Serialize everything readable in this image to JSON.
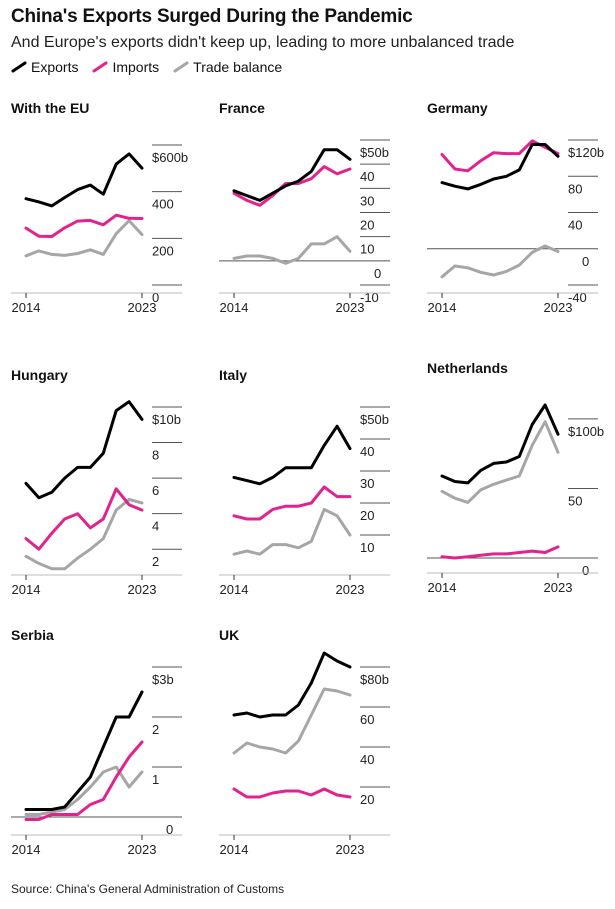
{
  "title": "China's Exports Surged During the Pandemic",
  "subtitle": "And Europe's exports didn't keep up, leading to more unbalanced trade",
  "legend": {
    "exports": "Exports",
    "imports": "Imports",
    "trade_balance": "Trade balance"
  },
  "colors": {
    "exports": "#000000",
    "imports": "#e0238f",
    "trade_balance": "#a6a6a6",
    "axis": "#555555"
  },
  "source": "Source: China's General Administration of Customs",
  "chart_data": [
    {
      "type": "line",
      "title": "With the EU",
      "x": [
        2014,
        2015,
        2016,
        2017,
        2018,
        2019,
        2020,
        2021,
        2022,
        2023
      ],
      "x_tick_labels": [
        "2014",
        "2023"
      ],
      "ylim": [
        0,
        600
      ],
      "y_ticks": [
        {
          "value": 600,
          "label": "$600b"
        },
        {
          "value": 400,
          "label": "400"
        },
        {
          "value": 200,
          "label": "200"
        },
        {
          "value": 0,
          "label": "0"
        }
      ],
      "y_axis_side": "right",
      "series": [
        {
          "name": "Exports",
          "values": [
            370,
            356,
            339,
            375,
            409,
            428,
            389,
            518,
            562,
            501
          ]
        },
        {
          "name": "Imports",
          "values": [
            244,
            209,
            208,
            245,
            274,
            277,
            258,
            299,
            286,
            285
          ]
        },
        {
          "name": "Trade balance",
          "values": [
            125,
            146,
            131,
            127,
            135,
            151,
            131,
            220,
            276,
            216
          ]
        }
      ]
    },
    {
      "type": "line",
      "title": "France",
      "x": [
        2014,
        2015,
        2016,
        2017,
        2018,
        2019,
        2020,
        2021,
        2022,
        2023
      ],
      "x_tick_labels": [
        "2014",
        "2023"
      ],
      "ylim": [
        -10,
        50
      ],
      "y_ticks": [
        {
          "value": 50,
          "label": "$50b"
        },
        {
          "value": 40,
          "label": "40"
        },
        {
          "value": 30,
          "label": "30"
        },
        {
          "value": 20,
          "label": "20"
        },
        {
          "value": 10,
          "label": "10"
        },
        {
          "value": 0,
          "label": "0"
        },
        {
          "value": -10,
          "label": "-10"
        }
      ],
      "y_axis_side": "right",
      "series": [
        {
          "name": "Exports",
          "values": [
            29,
            27,
            25,
            28,
            31,
            33,
            37,
            46,
            46,
            42
          ]
        },
        {
          "name": "Imports",
          "values": [
            28,
            25,
            23,
            27,
            32,
            32,
            34,
            39,
            36,
            38
          ]
        },
        {
          "name": "Trade balance",
          "values": [
            1,
            2,
            2,
            1,
            -1,
            1,
            7,
            7,
            10,
            4
          ]
        }
      ]
    },
    {
      "type": "line",
      "title": "Germany",
      "x": [
        2014,
        2015,
        2016,
        2017,
        2018,
        2019,
        2020,
        2021,
        2022,
        2023
      ],
      "x_tick_labels": [
        "2014",
        "2023"
      ],
      "ylim": [
        -40,
        120
      ],
      "y_ticks": [
        {
          "value": 120,
          "label": "$120b"
        },
        {
          "value": 80,
          "label": "80"
        },
        {
          "value": 40,
          "label": "40"
        },
        {
          "value": 0,
          "label": "0"
        },
        {
          "value": -40,
          "label": "-40"
        }
      ],
      "y_axis_side": "right",
      "series": [
        {
          "name": "Exports",
          "values": [
            73,
            69,
            66,
            71,
            77,
            80,
            87,
            115,
            115,
            102
          ]
        },
        {
          "name": "Imports",
          "values": [
            104,
            88,
            86,
            97,
            106,
            105,
            105,
            119,
            112,
            105
          ]
        },
        {
          "name": "Trade balance",
          "values": [
            -31,
            -19,
            -21,
            -26,
            -29,
            -25,
            -18,
            -4,
            3,
            -3
          ]
        }
      ]
    },
    {
      "type": "line",
      "title": "Hungary",
      "x": [
        2014,
        2015,
        2016,
        2017,
        2018,
        2019,
        2020,
        2021,
        2022,
        2023
      ],
      "x_tick_labels": [
        "2014",
        "2023"
      ],
      "ylim": [
        1,
        10
      ],
      "y_ticks": [
        {
          "value": 10,
          "label": "$10b"
        },
        {
          "value": 8,
          "label": "8"
        },
        {
          "value": 6,
          "label": "6"
        },
        {
          "value": 4,
          "label": "4"
        },
        {
          "value": 2,
          "label": "2"
        }
      ],
      "y_axis_side": "right",
      "series": [
        {
          "name": "Exports",
          "values": [
            5.7,
            4.9,
            5.2,
            6.0,
            6.6,
            6.6,
            7.4,
            9.8,
            10.3,
            9.3
          ]
        },
        {
          "name": "Imports",
          "values": [
            2.6,
            2.0,
            2.9,
            3.7,
            4.0,
            3.2,
            3.7,
            5.4,
            4.5,
            4.2
          ]
        },
        {
          "name": "Trade balance",
          "values": [
            1.6,
            1.2,
            0.9,
            0.9,
            1.5,
            2.0,
            2.6,
            4.2,
            4.8,
            4.6
          ]
        }
      ]
    },
    {
      "type": "line",
      "title": "Italy",
      "x": [
        2014,
        2015,
        2016,
        2017,
        2018,
        2019,
        2020,
        2021,
        2022,
        2023
      ],
      "x_tick_labels": [
        "2014",
        "2023"
      ],
      "ylim": [
        0,
        50
      ],
      "y_ticks": [
        {
          "value": 50,
          "label": "$50b"
        },
        {
          "value": 40,
          "label": "40"
        },
        {
          "value": 30,
          "label": "30"
        },
        {
          "value": 20,
          "label": "20"
        },
        {
          "value": 10,
          "label": "10"
        }
      ],
      "y_axis_side": "right",
      "series": [
        {
          "name": "Exports",
          "values": [
            28,
            27,
            26,
            28,
            31,
            31,
            31,
            38,
            44,
            37
          ]
        },
        {
          "name": "Imports",
          "values": [
            16,
            15,
            15,
            18,
            19,
            19,
            20,
            25,
            22,
            22
          ]
        },
        {
          "name": "Trade balance",
          "values": [
            4,
            5,
            4,
            7,
            7,
            6,
            8,
            18,
            16,
            10
          ]
        }
      ]
    },
    {
      "type": "line",
      "title": "Netherlands",
      "x": [
        2014,
        2015,
        2016,
        2017,
        2018,
        2019,
        2020,
        2021,
        2022,
        2023
      ],
      "x_tick_labels": [
        "2014",
        "2023"
      ],
      "ylim": [
        -5,
        110
      ],
      "y_ticks": [
        {
          "value": 100,
          "label": "$100b"
        },
        {
          "value": 50,
          "label": "50"
        },
        {
          "value": 0,
          "label": "0"
        }
      ],
      "y_axis_side": "right",
      "series": [
        {
          "name": "Exports",
          "values": [
            59,
            55,
            54,
            63,
            68,
            69,
            73,
            96,
            110,
            89
          ]
        },
        {
          "name": "Imports",
          "values": [
            1,
            0,
            1,
            2,
            3,
            3,
            4,
            5,
            4,
            8
          ]
        },
        {
          "name": "Trade balance",
          "values": [
            48,
            43,
            40,
            49,
            53,
            56,
            59,
            81,
            98,
            76
          ]
        }
      ]
    },
    {
      "type": "line",
      "title": "Serbia",
      "x": [
        2014,
        2015,
        2016,
        2017,
        2018,
        2019,
        2020,
        2021,
        2022,
        2023
      ],
      "x_tick_labels": [
        "2014",
        "2023"
      ],
      "ylim": [
        -0.2,
        3
      ],
      "y_ticks": [
        {
          "value": 3,
          "label": "$3b"
        },
        {
          "value": 2,
          "label": "2"
        },
        {
          "value": 1,
          "label": "1"
        },
        {
          "value": 0,
          "label": "0"
        }
      ],
      "y_axis_side": "right",
      "series": [
        {
          "name": "Exports",
          "values": [
            0.15,
            0.15,
            0.15,
            0.2,
            0.5,
            0.8,
            1.4,
            2.0,
            2.0,
            2.5
          ]
        },
        {
          "name": "Imports",
          "values": [
            -0.05,
            -0.05,
            0.05,
            0.05,
            0.05,
            0.25,
            0.35,
            0.8,
            1.2,
            1.5
          ]
        },
        {
          "name": "Trade balance",
          "values": [
            0.05,
            0.05,
            0.1,
            0.15,
            0.35,
            0.6,
            0.9,
            1.0,
            0.6,
            0.9
          ]
        }
      ]
    },
    {
      "type": "line",
      "title": "UK",
      "x": [
        2014,
        2015,
        2016,
        2017,
        2018,
        2019,
        2020,
        2021,
        2022,
        2023
      ],
      "x_tick_labels": [
        "2014",
        "2023"
      ],
      "ylim": [
        0,
        80
      ],
      "y_ticks": [
        {
          "value": 80,
          "label": "$80b"
        },
        {
          "value": 60,
          "label": "60"
        },
        {
          "value": 40,
          "label": "40"
        },
        {
          "value": 20,
          "label": "20"
        }
      ],
      "y_axis_side": "right",
      "series": [
        {
          "name": "Exports",
          "values": [
            56,
            57,
            55,
            56,
            56,
            61,
            72,
            87,
            83,
            80
          ]
        },
        {
          "name": "Imports",
          "values": [
            19,
            15,
            15,
            17,
            18,
            18,
            16,
            19,
            16,
            15
          ]
        },
        {
          "name": "Trade balance",
          "values": [
            37,
            42,
            40,
            39,
            37,
            43,
            56,
            69,
            68,
            66
          ]
        }
      ]
    }
  ]
}
